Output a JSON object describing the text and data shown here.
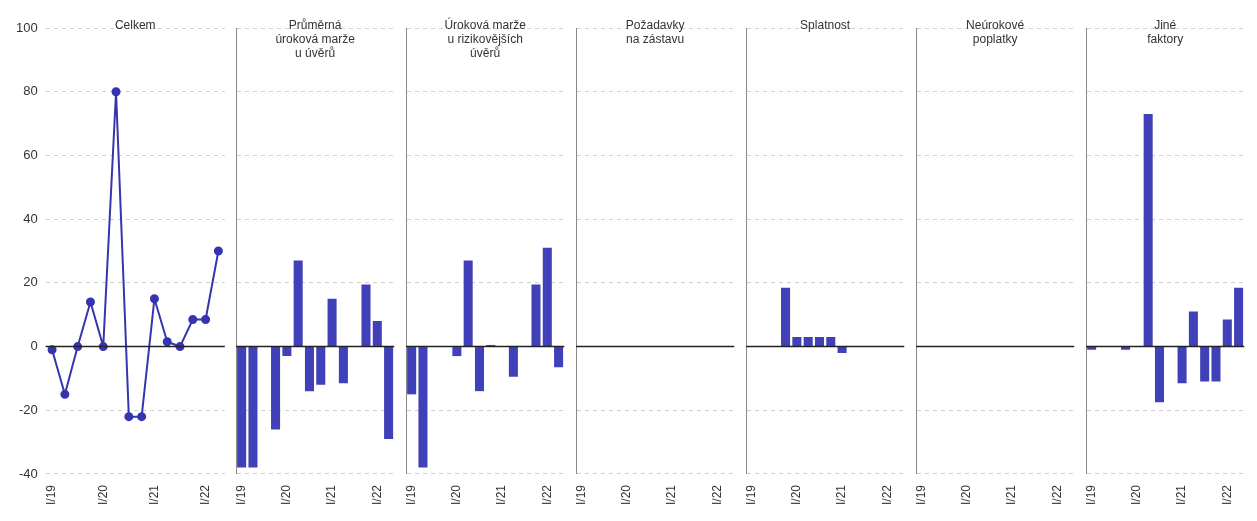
{
  "chart_data": [
    {
      "type": "line",
      "title": "Celkem",
      "categories": [
        "I/19",
        null,
        null,
        null,
        "I/20",
        null,
        null,
        null,
        "I/21",
        null,
        null,
        null,
        "I/22",
        null
      ],
      "values": [
        -1,
        -15,
        0,
        14,
        0,
        80,
        -22,
        -22,
        15,
        1.5,
        0,
        8.5,
        8.5,
        30
      ],
      "color": "#3535b0",
      "marker": "circle",
      "ylim": [
        -40,
        100
      ],
      "yticks": [
        -40,
        -20,
        0,
        20,
        40,
        60,
        80,
        100
      ],
      "grid": "y",
      "ref_lines": [
        {
          "axis": "y",
          "value": 0,
          "color": "#222222"
        }
      ]
    },
    {
      "type": "bar",
      "title": "Průměrná\núroková marže\nu úvěrů",
      "categories": [
        "I/19",
        null,
        null,
        null,
        "I/20",
        null,
        null,
        null,
        "I/21",
        null,
        null,
        null,
        "I/22",
        null
      ],
      "values": [
        -38,
        -38,
        0,
        -26,
        -3,
        27,
        -14,
        -12,
        15,
        -11.5,
        0,
        19.5,
        8,
        -29
      ],
      "color": "#4040b8",
      "ylim": [
        -40,
        100
      ],
      "yticks": [
        -40,
        -20,
        0,
        20,
        40,
        60,
        80,
        100
      ],
      "grid": "y",
      "tick_labels": "x",
      "ref_lines": [
        {
          "axis": "y",
          "value": 0,
          "color": "#222222"
        }
      ]
    },
    {
      "type": "bar",
      "title": "Úroková marže\nu rizikovějších\núvěrů",
      "categories": [
        "I/19",
        null,
        null,
        null,
        "I/20",
        null,
        null,
        null,
        "I/21",
        null,
        null,
        null,
        "I/22",
        null
      ],
      "values": [
        -15,
        -38,
        0,
        0,
        -3,
        27,
        -14,
        0.5,
        0,
        -9.5,
        0,
        19.5,
        31,
        -6.5
      ],
      "color": "#4040b8",
      "ylim": [
        -40,
        100
      ],
      "yticks": [
        -40,
        -20,
        0,
        20,
        40,
        60,
        80,
        100
      ],
      "grid": "y",
      "tick_labels": "x",
      "ref_lines": [
        {
          "axis": "y",
          "value": 0,
          "color": "#222222"
        }
      ]
    },
    {
      "type": "bar",
      "title": "Požadavky\nna zástavu",
      "categories": [
        "I/19",
        null,
        null,
        null,
        "I/20",
        null,
        null,
        null,
        "I/21",
        null,
        null,
        null,
        "I/22",
        null
      ],
      "values": [
        0,
        0,
        0,
        0,
        0,
        0,
        0,
        0,
        0,
        0,
        0,
        0,
        0,
        0
      ],
      "color": "#4040b8",
      "ylim": [
        -40,
        100
      ],
      "yticks": [
        -40,
        -20,
        0,
        20,
        40,
        60,
        80,
        100
      ],
      "grid": "y",
      "tick_labels": "x",
      "ref_lines": [
        {
          "axis": "y",
          "value": 0,
          "color": "#222222"
        }
      ]
    },
    {
      "type": "bar",
      "title": "Splatnost",
      "categories": [
        "I/19",
        null,
        null,
        null,
        "I/20",
        null,
        null,
        null,
        "I/21",
        null,
        null,
        null,
        "I/22",
        null
      ],
      "values": [
        0,
        0,
        0,
        18.5,
        3,
        3,
        3,
        3,
        -2,
        0,
        0,
        0,
        0,
        0
      ],
      "color": "#4040b8",
      "ylim": [
        -40,
        100
      ],
      "yticks": [
        -40,
        -20,
        0,
        20,
        40,
        60,
        80,
        100
      ],
      "grid": "y",
      "tick_labels": "x",
      "ref_lines": [
        {
          "axis": "y",
          "value": 0,
          "color": "#222222"
        }
      ]
    },
    {
      "type": "bar",
      "title": "Neúrokové\npoplatky",
      "categories": [
        "I/19",
        null,
        null,
        null,
        "I/20",
        null,
        null,
        null,
        "I/21",
        null,
        null,
        null,
        "I/22",
        null
      ],
      "values": [
        0,
        0,
        0,
        0,
        0,
        0,
        0,
        0,
        0,
        0,
        0,
        0,
        0,
        0
      ],
      "color": "#4040b8",
      "ylim": [
        -40,
        100
      ],
      "yticks": [
        -40,
        -20,
        0,
        20,
        40,
        60,
        80,
        100
      ],
      "grid": "y",
      "tick_labels": "x",
      "ref_lines": [
        {
          "axis": "y",
          "value": 0,
          "color": "#222222"
        }
      ]
    },
    {
      "type": "bar",
      "title": "Jiné\nfaktory",
      "categories": [
        "I/19",
        null,
        null,
        null,
        "I/20",
        null,
        null,
        null,
        "I/21",
        null,
        null,
        null,
        "I/22",
        null
      ],
      "values": [
        -1,
        0,
        0,
        -1,
        0,
        73,
        -17.5,
        0,
        -11.5,
        11,
        -11,
        -11,
        8.5,
        18.5
      ],
      "color": "#4040b8",
      "ylim": [
        -40,
        100
      ],
      "yticks": [
        -40,
        -20,
        0,
        20,
        40,
        60,
        80,
        100
      ],
      "grid": "y",
      "tick_labels": "x",
      "ref_lines": [
        {
          "axis": "y",
          "value": 0,
          "color": "#222222"
        }
      ]
    }
  ]
}
